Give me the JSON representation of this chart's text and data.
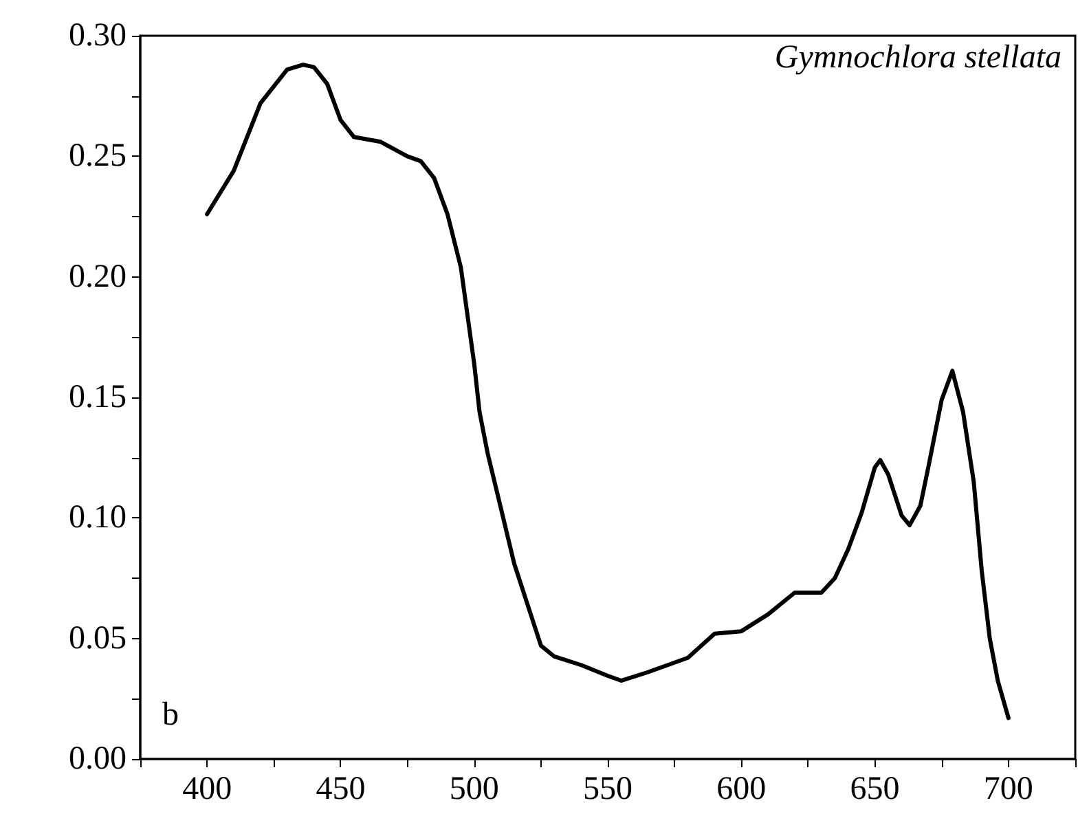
{
  "chart_data": {
    "type": "line",
    "x": [
      400,
      410,
      420,
      430,
      436,
      440,
      445,
      450,
      455,
      465,
      475,
      480,
      485,
      490,
      495,
      500,
      502,
      505,
      510,
      515,
      520,
      525,
      530,
      540,
      550,
      555,
      565,
      580,
      590,
      600,
      610,
      620,
      630,
      635,
      640,
      645,
      650,
      652,
      655,
      660,
      663,
      667,
      670,
      675,
      679,
      683,
      687,
      690,
      693,
      696,
      700
    ],
    "series": [
      {
        "color": "#000000",
        "values": [
          0.226,
          0.244,
          0.272,
          0.286,
          0.288,
          0.287,
          0.28,
          0.265,
          0.258,
          0.256,
          0.25,
          0.248,
          0.241,
          0.226,
          0.204,
          0.164,
          0.144,
          0.127,
          0.104,
          0.081,
          0.064,
          0.047,
          0.0425,
          0.039,
          0.0345,
          0.0325,
          0.036,
          0.042,
          0.052,
          0.053,
          0.06,
          0.069,
          0.069,
          0.075,
          0.087,
          0.102,
          0.121,
          0.124,
          0.118,
          0.101,
          0.097,
          0.105,
          0.121,
          0.149,
          0.161,
          0.144,
          0.115,
          0.078,
          0.05,
          0.0325,
          0.017
        ]
      }
    ],
    "xlim": [
      375,
      725
    ],
    "xticks": [
      {
        "value": 375,
        "label": null
      },
      400,
      {
        "value": 425,
        "label": null
      },
      450,
      {
        "value": 475,
        "label": null
      },
      500,
      {
        "value": 525,
        "label": null
      },
      550,
      {
        "value": 575,
        "label": null
      },
      600,
      {
        "value": 625,
        "label": null
      },
      650,
      {
        "value": 675,
        "label": null
      },
      700,
      {
        "value": 725,
        "label": null
      }
    ],
    "ylim": [
      0,
      0.3
    ],
    "yticks": [
      {
        "value": 0,
        "label": "0.00"
      },
      {
        "value": 0.025,
        "label": null
      },
      {
        "value": 0.05,
        "label": "0.05"
      },
      {
        "value": 0.075,
        "label": null
      },
      {
        "value": 0.1,
        "label": "0.10"
      },
      {
        "value": 0.125,
        "label": null
      },
      {
        "value": 0.15,
        "label": "0.15"
      },
      {
        "value": 0.175,
        "label": null
      },
      {
        "value": 0.2,
        "label": "0.20"
      },
      {
        "value": 0.225,
        "label": null
      },
      {
        "value": 0.25,
        "label": "0.25"
      },
      {
        "value": 0.275,
        "label": null
      },
      {
        "value": 0.3,
        "label": "0.30"
      }
    ],
    "annotations": [
      "Gymnochlora stellata",
      "b"
    ],
    "marker": "none",
    "line_style": "solid"
  }
}
